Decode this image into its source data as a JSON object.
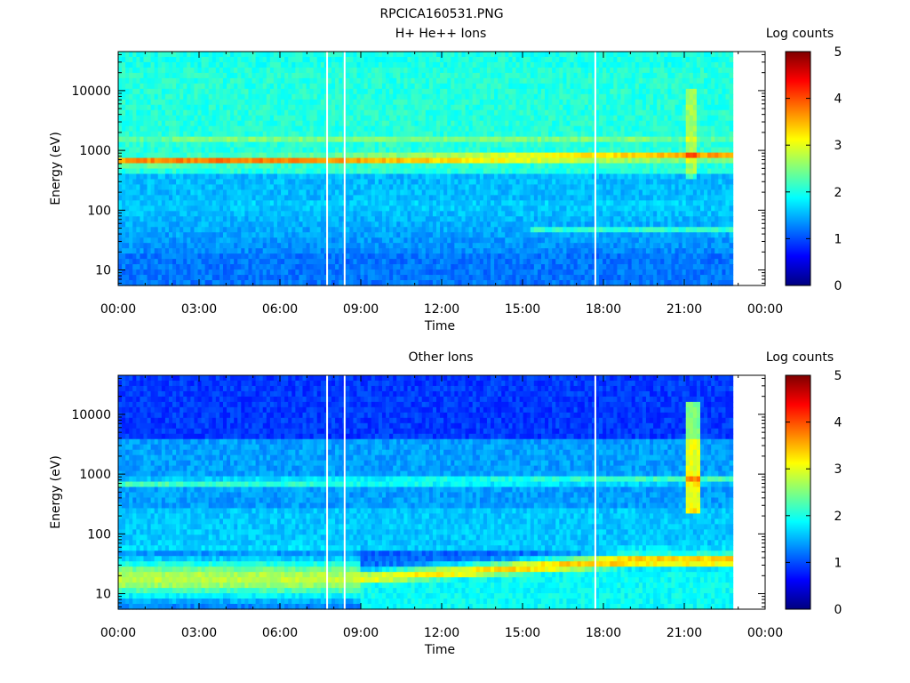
{
  "figure_title": "RPCICA160531.PNG",
  "chart_data": [
    {
      "type": "heatmap",
      "title": "H+ He++ Ions",
      "xlabel": "Time",
      "ylabel": "Energy (eV)",
      "x_tick_labels": [
        "00:00",
        "03:00",
        "06:00",
        "09:00",
        "12:00",
        "15:00",
        "18:00",
        "21:00",
        "00:00"
      ],
      "x_range_hours": [
        0,
        24
      ],
      "data_end_hour": 22.8,
      "y_scale": "log",
      "y_range": [
        5.5,
        45000
      ],
      "y_tick_labels": [
        "10",
        "100",
        "1000",
        "10000"
      ],
      "colorbar": {
        "label": "Log counts",
        "range": [
          0,
          5
        ],
        "tick_labels": [
          "0",
          "1",
          "2",
          "3",
          "4",
          "5"
        ]
      },
      "vertical_gap_lines_hours": [
        7.75,
        8.4,
        17.7
      ],
      "features": [
        {
          "name": "main band",
          "energy_eV_start": 650,
          "energy_eV_end": 800,
          "log_counts": 3.6
        },
        {
          "name": "upper faint band",
          "energy_eV": 1450,
          "log_counts": 2.8
        },
        {
          "name": "burst",
          "hours": [
            21.0,
            21.4
          ],
          "energy_eV": [
            300,
            10000
          ],
          "log_counts": 2.6
        },
        {
          "name": "low-energy line",
          "hours": [
            15.3,
            22.8
          ],
          "energy_eV": 45,
          "log_counts": 2.3
        }
      ]
    },
    {
      "type": "heatmap",
      "title": "Other Ions",
      "xlabel": "Time",
      "ylabel": "Energy (eV)",
      "x_tick_labels": [
        "00:00",
        "03:00",
        "06:00",
        "09:00",
        "12:00",
        "15:00",
        "18:00",
        "21:00",
        "00:00"
      ],
      "x_range_hours": [
        0,
        24
      ],
      "data_end_hour": 22.8,
      "y_scale": "log",
      "y_range": [
        5.5,
        45000
      ],
      "y_tick_labels": [
        "10",
        "100",
        "1000",
        "10000"
      ],
      "colorbar": {
        "label": "Log counts",
        "range": [
          0,
          5
        ],
        "tick_labels": [
          "0",
          "1",
          "2",
          "3",
          "4",
          "5"
        ]
      },
      "vertical_gap_lines_hours": [
        7.75,
        8.4,
        17.7
      ],
      "features": [
        {
          "name": "mid band",
          "energy_eV_start": 650,
          "energy_eV_end": 800,
          "log_counts": 2.2
        },
        {
          "name": "low-energy band",
          "energy_eV_start": 12,
          "energy_eV_end": 45,
          "log_counts": 3.4
        },
        {
          "name": "burst",
          "hours": [
            21.0,
            21.6
          ],
          "energy_eV": [
            200,
            15000
          ],
          "log_counts": 3.2
        }
      ]
    }
  ]
}
